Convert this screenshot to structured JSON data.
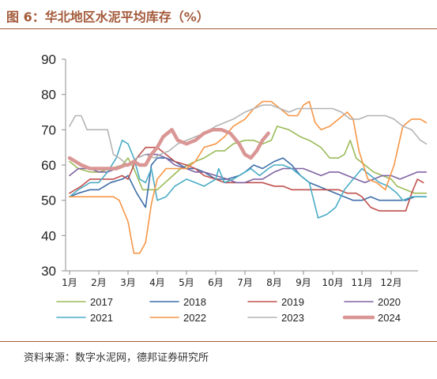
{
  "figure": {
    "title": "图 6：华北地区水泥平均库存（%）",
    "source": "资料来源：数字水泥网，德邦证券研究所"
  },
  "colors": {
    "2017": "#9bbb59",
    "2018": "#3e6ea8",
    "2019": "#c0504d",
    "2020": "#8064a2",
    "2021": "#4bacc6",
    "2022": "#f79646",
    "2023": "#b4b4b4",
    "2024": "#d99694"
  },
  "chart_data": {
    "type": "line",
    "title": "",
    "xlabel": "",
    "ylabel": "",
    "ylim": [
      30,
      90
    ],
    "yticks": [
      30,
      40,
      50,
      60,
      70,
      80,
      90
    ],
    "xlim": [
      1,
      13.2
    ],
    "xticks": [
      "1月",
      "2月",
      "3月",
      "4月",
      "5月",
      "6月",
      "7月",
      "8月",
      "9月",
      "10月",
      "11月",
      "12月"
    ],
    "legend_position": "bottom",
    "series": [
      {
        "name": "2017",
        "points": [
          [
            1,
            61
          ],
          [
            1.3,
            59
          ],
          [
            1.7,
            58
          ],
          [
            2,
            58
          ],
          [
            2.4,
            59
          ],
          [
            2.8,
            60
          ],
          [
            3,
            62
          ],
          [
            3.2,
            59
          ],
          [
            3.5,
            53
          ],
          [
            4,
            53
          ],
          [
            4.4,
            56
          ],
          [
            4.8,
            59
          ],
          [
            5.3,
            61
          ],
          [
            5.6,
            62
          ],
          [
            6,
            64
          ],
          [
            6.3,
            64
          ],
          [
            6.6,
            66
          ],
          [
            7,
            67
          ],
          [
            7.3,
            67
          ],
          [
            7.6,
            66
          ],
          [
            7.9,
            67
          ],
          [
            8.1,
            71
          ],
          [
            8.5,
            70
          ],
          [
            8.9,
            68
          ],
          [
            9.2,
            67
          ],
          [
            9.6,
            65
          ],
          [
            9.9,
            62
          ],
          [
            10.2,
            62
          ],
          [
            10.4,
            63
          ],
          [
            10.6,
            67
          ],
          [
            10.8,
            62
          ],
          [
            11.1,
            60
          ],
          [
            11.4,
            58
          ],
          [
            11.7,
            57
          ],
          [
            12,
            56
          ],
          [
            12.2,
            54
          ],
          [
            12.5,
            53
          ],
          [
            12.8,
            52
          ],
          [
            13.2,
            52
          ]
        ]
      },
      {
        "name": "2018",
        "points": [
          [
            1,
            51
          ],
          [
            1.3,
            52
          ],
          [
            1.7,
            53
          ],
          [
            2,
            53
          ],
          [
            2.4,
            55
          ],
          [
            2.8,
            56
          ],
          [
            3,
            57
          ],
          [
            3.3,
            52
          ],
          [
            3.6,
            48
          ],
          [
            3.8,
            60
          ],
          [
            4,
            62
          ],
          [
            4.3,
            62
          ],
          [
            4.6,
            61
          ],
          [
            5,
            59
          ],
          [
            5.3,
            59
          ],
          [
            5.6,
            58
          ],
          [
            6,
            56
          ],
          [
            6.4,
            56
          ],
          [
            6.8,
            57
          ],
          [
            7,
            58
          ],
          [
            7.3,
            60
          ],
          [
            7.6,
            59
          ],
          [
            8,
            61
          ],
          [
            8.3,
            62
          ],
          [
            8.6,
            60
          ],
          [
            8.9,
            57
          ],
          [
            9.2,
            55
          ],
          [
            9.5,
            54
          ],
          [
            9.8,
            53
          ],
          [
            10.1,
            52
          ],
          [
            10.4,
            51
          ],
          [
            10.7,
            50
          ],
          [
            11,
            50
          ],
          [
            11.3,
            51
          ],
          [
            11.6,
            50
          ],
          [
            11.9,
            50
          ],
          [
            12.2,
            50
          ],
          [
            12.5,
            50
          ],
          [
            12.8,
            51
          ],
          [
            13.2,
            51
          ]
        ]
      },
      {
        "name": "2019",
        "points": [
          [
            1,
            52
          ],
          [
            1.4,
            54
          ],
          [
            1.7,
            56
          ],
          [
            2.1,
            56
          ],
          [
            2.5,
            56
          ],
          [
            2.8,
            57
          ],
          [
            3,
            56
          ],
          [
            3.3,
            62
          ],
          [
            3.6,
            65
          ],
          [
            4,
            65
          ],
          [
            4.3,
            63
          ],
          [
            4.6,
            61
          ],
          [
            5,
            60
          ],
          [
            5.3,
            59
          ],
          [
            5.6,
            57
          ],
          [
            6,
            56
          ],
          [
            6.3,
            55
          ],
          [
            6.7,
            55
          ],
          [
            7,
            55
          ],
          [
            7.3,
            55
          ],
          [
            7.6,
            55
          ],
          [
            8,
            54
          ],
          [
            8.3,
            54
          ],
          [
            8.6,
            53
          ],
          [
            9,
            53
          ],
          [
            9.3,
            53
          ],
          [
            9.6,
            53
          ],
          [
            9.9,
            53
          ],
          [
            10.2,
            53
          ],
          [
            10.5,
            52
          ],
          [
            10.8,
            52
          ],
          [
            11,
            51
          ],
          [
            11.3,
            48
          ],
          [
            11.6,
            47
          ],
          [
            11.9,
            47
          ],
          [
            12.2,
            47
          ],
          [
            12.5,
            47
          ],
          [
            12.7,
            52
          ],
          [
            12.9,
            56
          ],
          [
            13.1,
            55
          ]
        ]
      },
      {
        "name": "2020",
        "points": [
          [
            1,
            57
          ],
          [
            1.3,
            59
          ],
          [
            1.7,
            59
          ],
          [
            2,
            58
          ],
          [
            2.3,
            58
          ],
          [
            2.6,
            59
          ],
          [
            3,
            60
          ],
          [
            3.3,
            62
          ],
          [
            3.6,
            63
          ],
          [
            4,
            63
          ],
          [
            4.3,
            62
          ],
          [
            4.6,
            60
          ],
          [
            5,
            59
          ],
          [
            5.3,
            58
          ],
          [
            5.6,
            58
          ],
          [
            6,
            57
          ],
          [
            6.4,
            56
          ],
          [
            6.7,
            55
          ],
          [
            7,
            55
          ],
          [
            7.3,
            56
          ],
          [
            7.6,
            56
          ],
          [
            8,
            58
          ],
          [
            8.3,
            59
          ],
          [
            8.6,
            59
          ],
          [
            9,
            59
          ],
          [
            9.3,
            58
          ],
          [
            9.6,
            57
          ],
          [
            9.9,
            58
          ],
          [
            10.2,
            58
          ],
          [
            10.5,
            57
          ],
          [
            10.8,
            56
          ],
          [
            11.1,
            55
          ],
          [
            11.4,
            56
          ],
          [
            11.7,
            57
          ],
          [
            12,
            57
          ],
          [
            12.3,
            56
          ],
          [
            12.6,
            57
          ],
          [
            12.9,
            58
          ],
          [
            13.2,
            58
          ]
        ]
      },
      {
        "name": "2021",
        "points": [
          [
            1,
            51
          ],
          [
            1.3,
            53
          ],
          [
            1.7,
            55
          ],
          [
            2,
            55
          ],
          [
            2.3,
            58
          ],
          [
            2.6,
            62
          ],
          [
            2.8,
            67
          ],
          [
            3,
            66
          ],
          [
            3.2,
            62
          ],
          [
            3.4,
            56
          ],
          [
            3.6,
            55
          ],
          [
            3.8,
            59
          ],
          [
            4,
            50
          ],
          [
            4.3,
            51
          ],
          [
            4.6,
            54
          ],
          [
            5,
            56
          ],
          [
            5.3,
            55
          ],
          [
            5.6,
            54
          ],
          [
            6,
            56
          ],
          [
            6.1,
            59
          ],
          [
            6.3,
            55
          ],
          [
            6.6,
            56
          ],
          [
            7,
            58
          ],
          [
            7.2,
            59
          ],
          [
            7.5,
            57
          ],
          [
            7.8,
            59
          ],
          [
            8,
            60
          ],
          [
            8.3,
            60
          ],
          [
            8.6,
            59
          ],
          [
            8.9,
            57
          ],
          [
            9.2,
            55
          ],
          [
            9.5,
            45
          ],
          [
            9.8,
            46
          ],
          [
            10.1,
            48
          ],
          [
            10.4,
            53
          ],
          [
            10.7,
            56
          ],
          [
            11,
            59
          ],
          [
            11.3,
            57
          ],
          [
            11.6,
            55
          ],
          [
            11.9,
            54
          ],
          [
            12.2,
            52
          ],
          [
            12.4,
            50
          ],
          [
            12.7,
            51
          ],
          [
            13.2,
            51
          ]
        ]
      },
      {
        "name": "2022",
        "points": [
          [
            1,
            51
          ],
          [
            1.4,
            51
          ],
          [
            1.8,
            51
          ],
          [
            2.2,
            51
          ],
          [
            2.5,
            51
          ],
          [
            2.7,
            50
          ],
          [
            3,
            44
          ],
          [
            3.2,
            35
          ],
          [
            3.4,
            35
          ],
          [
            3.6,
            38
          ],
          [
            3.8,
            49
          ],
          [
            4,
            56
          ],
          [
            4.3,
            59
          ],
          [
            4.7,
            59
          ],
          [
            5,
            59
          ],
          [
            5.3,
            61
          ],
          [
            5.6,
            65
          ],
          [
            6,
            66
          ],
          [
            6.3,
            68
          ],
          [
            6.6,
            71
          ],
          [
            7,
            73
          ],
          [
            7.3,
            76
          ],
          [
            7.6,
            78
          ],
          [
            7.9,
            78
          ],
          [
            8.2,
            76
          ],
          [
            8.5,
            74
          ],
          [
            8.8,
            74
          ],
          [
            9,
            77
          ],
          [
            9.2,
            78
          ],
          [
            9.4,
            72
          ],
          [
            9.6,
            70
          ],
          [
            9.9,
            71
          ],
          [
            10.2,
            73
          ],
          [
            10.5,
            75
          ],
          [
            10.7,
            73
          ],
          [
            10.9,
            64
          ],
          [
            11.2,
            56
          ],
          [
            11.5,
            55
          ],
          [
            11.8,
            53
          ],
          [
            12.1,
            60
          ],
          [
            12.4,
            71
          ],
          [
            12.7,
            73
          ],
          [
            13,
            73
          ],
          [
            13.2,
            72
          ]
        ]
      },
      {
        "name": "2023",
        "points": [
          [
            1,
            71
          ],
          [
            1.2,
            74
          ],
          [
            1.4,
            74
          ],
          [
            1.6,
            70
          ],
          [
            1.8,
            70
          ],
          [
            2.1,
            70
          ],
          [
            2.3,
            70
          ],
          [
            2.5,
            63
          ],
          [
            2.7,
            62
          ],
          [
            3,
            60
          ],
          [
            3.3,
            62
          ],
          [
            3.6,
            63
          ],
          [
            3.9,
            62
          ],
          [
            4.1,
            63
          ],
          [
            4.4,
            64
          ],
          [
            4.7,
            66
          ],
          [
            5,
            67
          ],
          [
            5.3,
            68
          ],
          [
            5.6,
            69
          ],
          [
            6,
            71
          ],
          [
            6.3,
            72
          ],
          [
            6.6,
            73
          ],
          [
            7,
            75
          ],
          [
            7.3,
            76
          ],
          [
            7.6,
            77
          ],
          [
            7.9,
            77
          ],
          [
            8.2,
            76
          ],
          [
            8.5,
            75
          ],
          [
            8.8,
            76
          ],
          [
            9.1,
            76
          ],
          [
            9.4,
            76
          ],
          [
            9.7,
            76
          ],
          [
            10,
            76
          ],
          [
            10.3,
            75
          ],
          [
            10.6,
            73
          ],
          [
            10.9,
            73
          ],
          [
            11.2,
            74
          ],
          [
            11.5,
            74
          ],
          [
            11.8,
            74
          ],
          [
            12.1,
            73
          ],
          [
            12.4,
            71
          ],
          [
            12.7,
            70
          ],
          [
            13,
            67
          ],
          [
            13.2,
            66
          ]
        ]
      },
      {
        "name": "2024",
        "points": [
          [
            1,
            62
          ],
          [
            1.2,
            61
          ],
          [
            1.4,
            60
          ],
          [
            1.7,
            59
          ],
          [
            2,
            59
          ],
          [
            2.3,
            59
          ],
          [
            2.6,
            59
          ],
          [
            2.9,
            60
          ],
          [
            3,
            60
          ],
          [
            3.2,
            61
          ],
          [
            3.4,
            60
          ],
          [
            3.6,
            60
          ],
          [
            3.8,
            63
          ],
          [
            4,
            65
          ],
          [
            4.2,
            68
          ],
          [
            4.5,
            70
          ],
          [
            4.7,
            67
          ],
          [
            5,
            66
          ],
          [
            5.3,
            67
          ],
          [
            5.6,
            69
          ],
          [
            5.9,
            70
          ],
          [
            6.2,
            70
          ],
          [
            6.5,
            69
          ],
          [
            6.8,
            66
          ],
          [
            7,
            63
          ],
          [
            7.2,
            62
          ],
          [
            7.4,
            64
          ],
          [
            7.6,
            67
          ],
          [
            7.8,
            69
          ]
        ]
      }
    ]
  }
}
